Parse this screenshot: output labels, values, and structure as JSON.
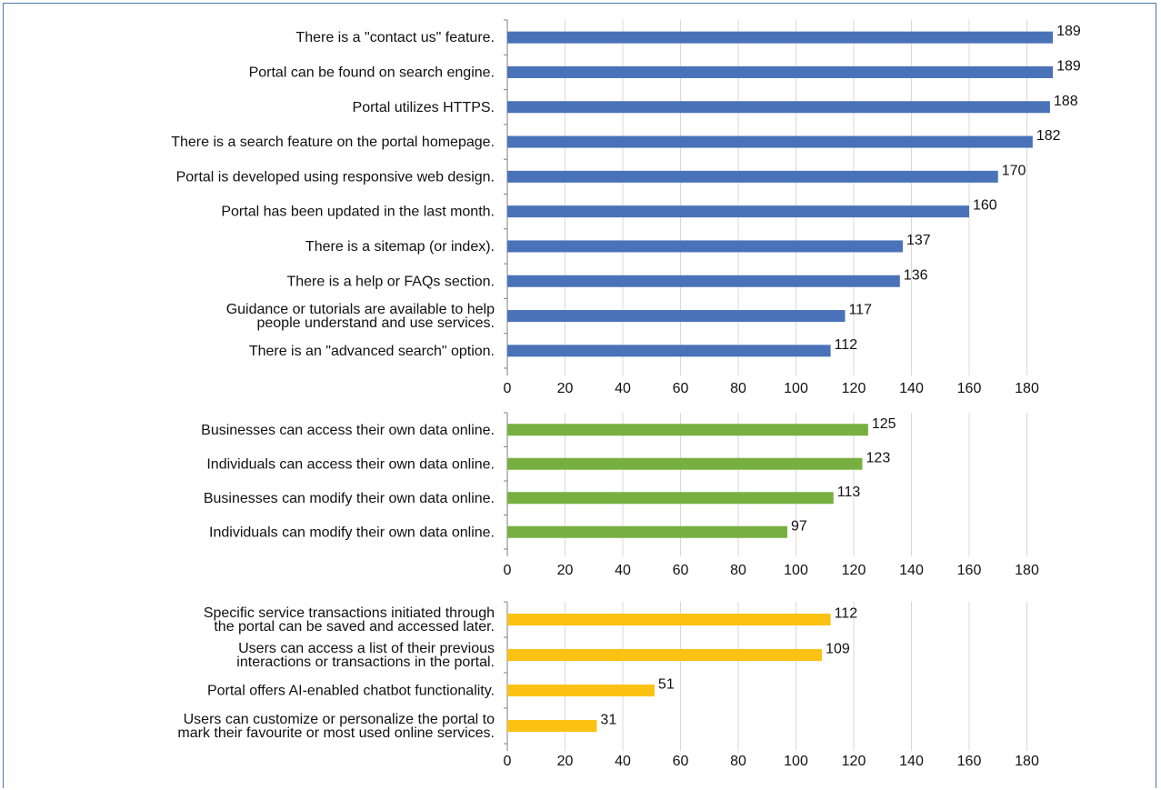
{
  "chart_data": [
    {
      "type": "bar",
      "orientation": "horizontal",
      "color": "#4a72b8",
      "xlim": [
        0,
        190
      ],
      "ticks": [
        0,
        20,
        40,
        60,
        80,
        100,
        120,
        140,
        160,
        180
      ],
      "grid": true,
      "categories": [
        [
          "There is a \"contact us\" feature."
        ],
        [
          "Portal can be found on search engine."
        ],
        [
          "Portal utilizes HTTPS."
        ],
        [
          "There is a search feature on the portal homepage."
        ],
        [
          "Portal is developed using responsive web design."
        ],
        [
          "Portal has been updated in the last month."
        ],
        [
          "There is a sitemap (or index)."
        ],
        [
          "There is a help or FAQs section."
        ],
        [
          "Guidance or tutorials are available to help",
          "people understand and use services."
        ],
        [
          "There is an \"advanced search\" option."
        ]
      ],
      "values": [
        189,
        189,
        188,
        182,
        170,
        160,
        137,
        136,
        117,
        112
      ]
    },
    {
      "type": "bar",
      "orientation": "horizontal",
      "color": "#77b041",
      "xlim": [
        0,
        190
      ],
      "ticks": [
        0,
        20,
        40,
        60,
        80,
        100,
        120,
        140,
        160,
        180
      ],
      "grid": true,
      "categories": [
        [
          "Businesses can access their own data online."
        ],
        [
          "Individuals can access their own data online."
        ],
        [
          "Businesses can modify their own data online."
        ],
        [
          "Individuals can  modify their own data online."
        ]
      ],
      "values": [
        125,
        123,
        113,
        97
      ]
    },
    {
      "type": "bar",
      "orientation": "horizontal",
      "color": "#fcc213",
      "xlim": [
        0,
        190
      ],
      "ticks": [
        0,
        20,
        40,
        60,
        80,
        100,
        120,
        140,
        160,
        180
      ],
      "grid": true,
      "categories": [
        [
          "Specific service transactions initiated through",
          "the portal can be saved and accessed later."
        ],
        [
          "Users can access a list of their previous",
          "interactions or transactions in the portal."
        ],
        [
          "Portal offers AI-enabled chatbot functionality."
        ],
        [
          "Users can customize or personalize the portal to",
          "mark their favourite or most used online services."
        ]
      ],
      "values": [
        112,
        109,
        51,
        31
      ]
    }
  ]
}
